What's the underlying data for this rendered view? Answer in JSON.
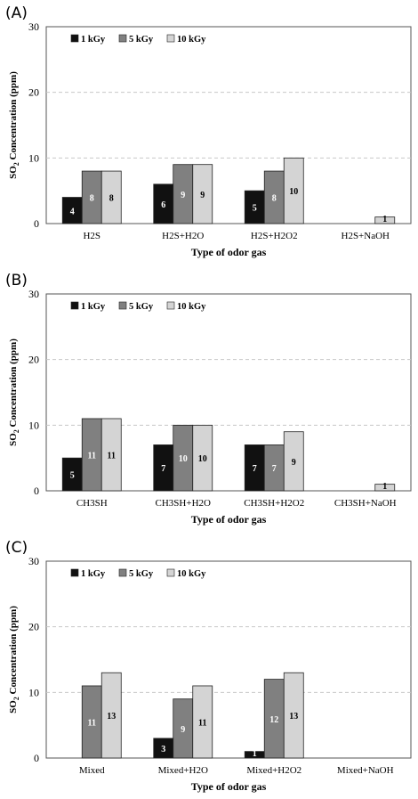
{
  "chart_data": [
    {
      "panel_label": "(A)",
      "type": "bar",
      "categories": [
        "H2S",
        "H2S+H2O",
        "H2S+H2O2",
        "H2S+NaOH"
      ],
      "series": [
        {
          "name": "1 kGy",
          "color": "#111111",
          "label_color": "#ffffff",
          "values": [
            4,
            6,
            5,
            null
          ]
        },
        {
          "name": "5 kGy",
          "color": "#808080",
          "label_color": "#ffffff",
          "values": [
            8,
            9,
            8,
            null
          ]
        },
        {
          "name": "10 kGy",
          "color": "#d4d4d4",
          "label_color": "#000000",
          "values": [
            8,
            9,
            10,
            1
          ]
        }
      ],
      "xlabel": "Type of odor gas",
      "ylabel": "SO2 Concentration (ppm)",
      "ylim": [
        0,
        30
      ],
      "yticks": [
        0,
        10,
        20,
        30
      ],
      "grid": true,
      "legend_position": "top-left"
    },
    {
      "panel_label": "(B)",
      "type": "bar",
      "categories": [
        "CH3SH",
        "CH3SH+H2O",
        "CH3SH+H2O2",
        "CH3SH+NaOH"
      ],
      "series": [
        {
          "name": "1 kGy",
          "color": "#111111",
          "label_color": "#ffffff",
          "values": [
            5,
            7,
            7,
            null
          ]
        },
        {
          "name": "5 kGy",
          "color": "#808080",
          "label_color": "#ffffff",
          "values": [
            11,
            10,
            7,
            null
          ]
        },
        {
          "name": "10 kGy",
          "color": "#d4d4d4",
          "label_color": "#000000",
          "values": [
            11,
            10,
            9,
            1
          ]
        }
      ],
      "xlabel": "Type of odor gas",
      "ylabel": "SO2 Concentration (ppm)",
      "ylim": [
        0,
        30
      ],
      "yticks": [
        0,
        10,
        20,
        30
      ],
      "grid": true,
      "legend_position": "top-left"
    },
    {
      "panel_label": "(C)",
      "type": "bar",
      "categories": [
        "Mixed",
        "Mixed+H2O",
        "Mixed+H2O2",
        "Mixed+NaOH"
      ],
      "series": [
        {
          "name": "1 kGy",
          "color": "#111111",
          "label_color": "#ffffff",
          "values": [
            null,
            3,
            1,
            null
          ]
        },
        {
          "name": "5 kGy",
          "color": "#808080",
          "label_color": "#ffffff",
          "values": [
            11,
            9,
            12,
            null
          ]
        },
        {
          "name": "10 kGy",
          "color": "#d4d4d4",
          "label_color": "#000000",
          "values": [
            13,
            11,
            13,
            null
          ]
        }
      ],
      "xlabel": "Type of odor gas",
      "ylabel": "SO2 Concentration (ppm)",
      "ylim": [
        0,
        30
      ],
      "yticks": [
        0,
        10,
        20,
        30
      ],
      "grid": true,
      "legend_position": "top-left"
    }
  ]
}
